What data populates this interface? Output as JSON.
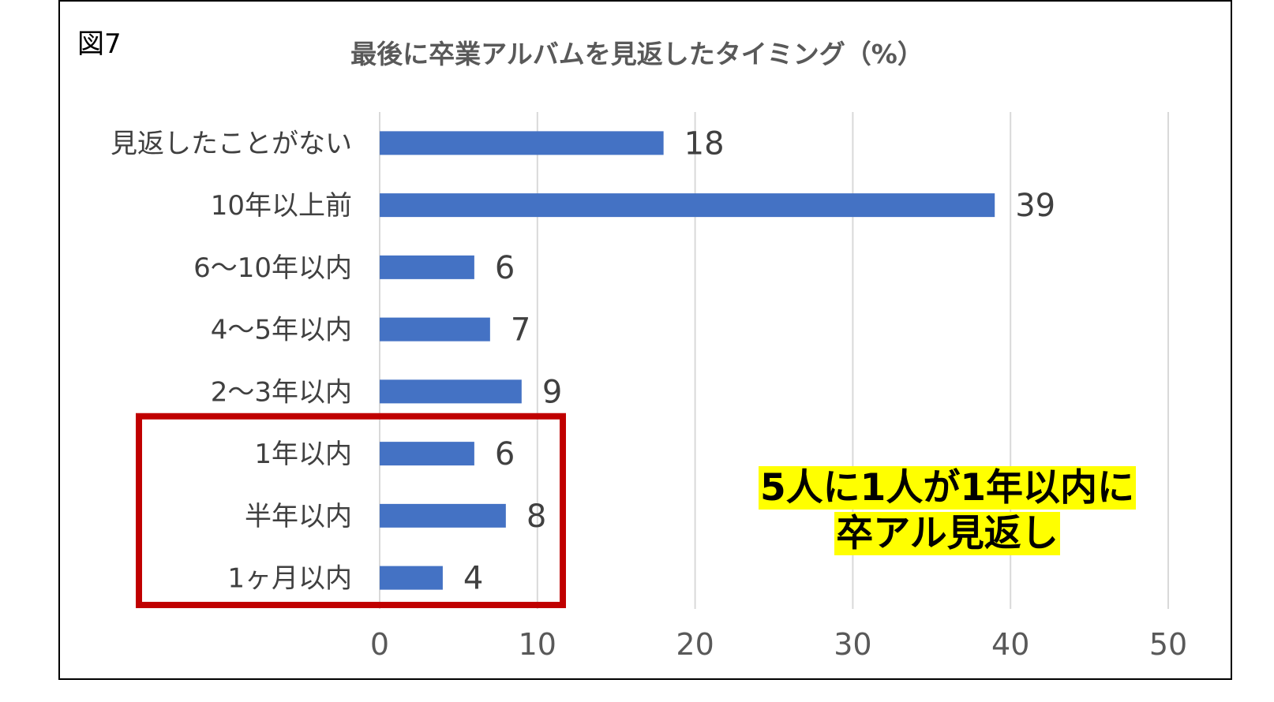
{
  "figure_label": "図7",
  "chart_data": {
    "type": "bar",
    "orientation": "horizontal",
    "title": "最後に卒業アルバムを見返したタイミング（%）",
    "categories": [
      "見返したことがない",
      "10年以上前",
      "6～10年以内",
      "4～5年以内",
      "2～3年以内",
      "1年以内",
      "半年以内",
      "1ヶ月以内"
    ],
    "values": [
      18,
      39,
      6,
      7,
      9,
      6,
      8,
      4
    ],
    "xlim": [
      0,
      50
    ],
    "xticks": [
      0,
      10,
      20,
      30,
      40,
      50
    ],
    "grid": true,
    "legend": "none",
    "bar_color": "#4472C4",
    "highlight": {
      "categories": [
        "1年以内",
        "半年以内",
        "1ヶ月以内"
      ],
      "color": "#C00000"
    }
  },
  "annotation": {
    "lines": [
      "5人に1人が1年以内に",
      "卒アル見返し"
    ],
    "background": "#FFFF00"
  }
}
